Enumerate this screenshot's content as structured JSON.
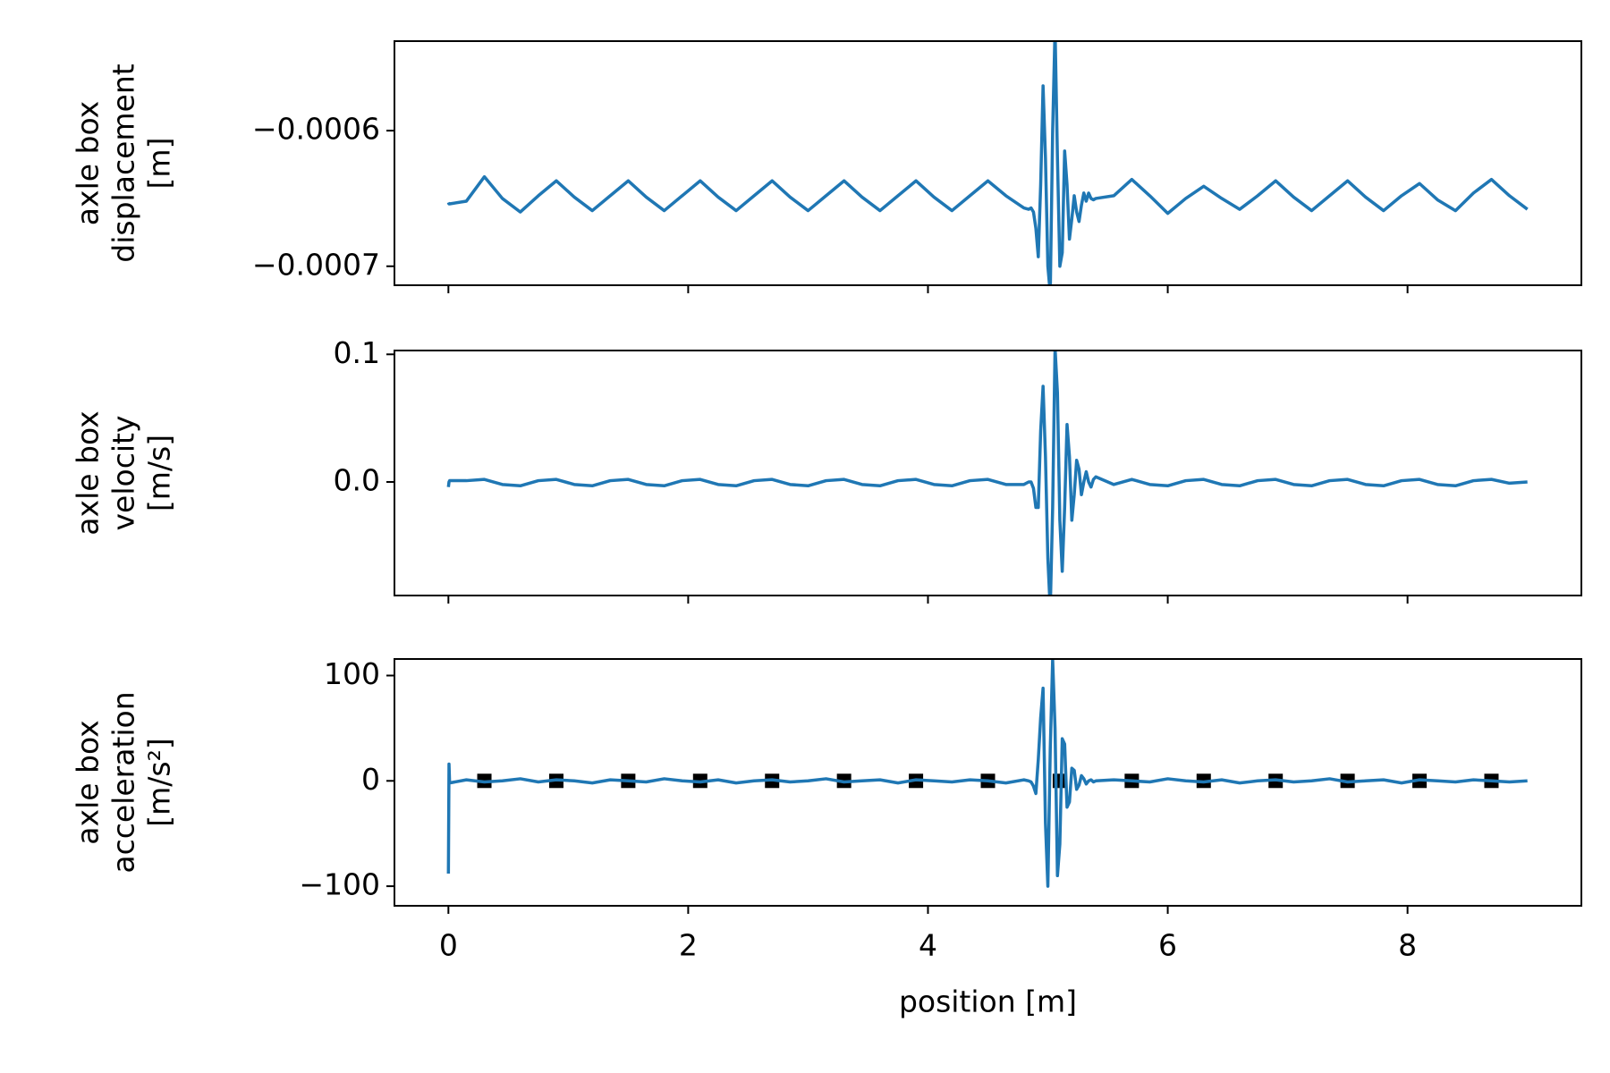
{
  "chart_data": [
    {
      "type": "line",
      "ylabel": [
        "axle box",
        "displacement",
        "[m]"
      ],
      "x": [
        0,
        0.005,
        0.01,
        0.15,
        0.3,
        0.45,
        0.6,
        0.75,
        0.9,
        1.05,
        1.2,
        1.35,
        1.5,
        1.65,
        1.8,
        1.95,
        2.1,
        2.25,
        2.4,
        2.55,
        2.7,
        2.85,
        3.0,
        3.15,
        3.3,
        3.45,
        3.6,
        3.75,
        3.9,
        4.05,
        4.2,
        4.35,
        4.5,
        4.65,
        4.8,
        4.84,
        4.86,
        4.88,
        4.9,
        4.92,
        4.94,
        4.96,
        4.98,
        5.0,
        5.02,
        5.04,
        5.06,
        5.08,
        5.1,
        5.12,
        5.14,
        5.16,
        5.18,
        5.2,
        5.22,
        5.24,
        5.26,
        5.28,
        5.3,
        5.32,
        5.34,
        5.36,
        5.38,
        5.4,
        5.55,
        5.7,
        5.85,
        6.0,
        6.15,
        6.3,
        6.45,
        6.6,
        6.75,
        6.9,
        7.05,
        7.2,
        7.35,
        7.5,
        7.65,
        7.8,
        7.95,
        8.1,
        8.25,
        8.4,
        8.55,
        8.7,
        8.85,
        9.0
      ],
      "series": [
        {
          "color": "#1f77b4",
          "values": [
            -0.000653,
            -0.000654,
            -0.000654,
            -0.000652,
            -0.000634,
            -0.00065,
            -0.00066,
            -0.000648,
            -0.000637,
            -0.000649,
            -0.000659,
            -0.000648,
            -0.000637,
            -0.000649,
            -0.000659,
            -0.000648,
            -0.000637,
            -0.000649,
            -0.000659,
            -0.000648,
            -0.000637,
            -0.000649,
            -0.000659,
            -0.000648,
            -0.000637,
            -0.000649,
            -0.000659,
            -0.000648,
            -0.000637,
            -0.000649,
            -0.000659,
            -0.000648,
            -0.000637,
            -0.000648,
            -0.000657,
            -0.000658,
            -0.000657,
            -0.00066,
            -0.000672,
            -0.000693,
            -0.00064,
            -0.000567,
            -0.00062,
            -0.0007,
            -0.00072,
            -0.0006,
            -0.000525,
            -0.00062,
            -0.0007,
            -0.00069,
            -0.000615,
            -0.00064,
            -0.00068,
            -0.000665,
            -0.000648,
            -0.00066,
            -0.000667,
            -0.000655,
            -0.000646,
            -0.000652,
            -0.000646,
            -0.00065,
            -0.000651,
            -0.00065,
            -0.000648,
            -0.000636,
            -0.000648,
            -0.000661,
            -0.00065,
            -0.000641,
            -0.00065,
            -0.000658,
            -0.000648,
            -0.000637,
            -0.000649,
            -0.000659,
            -0.000648,
            -0.000637,
            -0.000649,
            -0.000659,
            -0.000648,
            -0.000639,
            -0.000651,
            -0.000659,
            -0.000646,
            -0.000636,
            -0.000648,
            -0.000658
          ]
        }
      ],
      "xlim": [
        -0.45,
        9.45
      ],
      "xticks": [
        0,
        2,
        4,
        6,
        8
      ],
      "ylim": [
        -0.000714,
        -0.000534
      ],
      "yticks": [
        {
          "value": -0.0006,
          "label": "−0.0006"
        },
        {
          "value": -0.0007,
          "label": "−0.0007"
        }
      ]
    },
    {
      "type": "line",
      "ylabel": [
        "axle box",
        "velocity",
        "[m/s]"
      ],
      "x": [
        0,
        0.005,
        0.01,
        0.15,
        0.3,
        0.45,
        0.6,
        0.75,
        0.9,
        1.05,
        1.2,
        1.35,
        1.5,
        1.65,
        1.8,
        1.95,
        2.1,
        2.25,
        2.4,
        2.55,
        2.7,
        2.85,
        3.0,
        3.15,
        3.3,
        3.45,
        3.6,
        3.75,
        3.9,
        4.05,
        4.2,
        4.35,
        4.5,
        4.65,
        4.8,
        4.84,
        4.86,
        4.88,
        4.9,
        4.92,
        4.94,
        4.96,
        4.98,
        5.0,
        5.02,
        5.04,
        5.06,
        5.08,
        5.1,
        5.12,
        5.14,
        5.16,
        5.18,
        5.2,
        5.22,
        5.24,
        5.26,
        5.28,
        5.3,
        5.32,
        5.34,
        5.36,
        5.38,
        5.4,
        5.55,
        5.7,
        5.85,
        6.0,
        6.15,
        6.3,
        6.45,
        6.6,
        6.75,
        6.9,
        7.05,
        7.2,
        7.35,
        7.5,
        7.65,
        7.8,
        7.95,
        8.1,
        8.25,
        8.4,
        8.55,
        8.7,
        8.85,
        9.0
      ],
      "series": [
        {
          "color": "#1f77b4",
          "values": [
            -0.004,
            0,
            0.001,
            0.001,
            0.002,
            -0.002,
            -0.003,
            0.001,
            0.002,
            -0.002,
            -0.003,
            0.001,
            0.002,
            -0.002,
            -0.003,
            0.001,
            0.002,
            -0.002,
            -0.003,
            0.001,
            0.002,
            -0.002,
            -0.003,
            0.001,
            0.002,
            -0.002,
            -0.003,
            0.001,
            0.002,
            -0.002,
            -0.003,
            0.001,
            0.002,
            -0.002,
            -0.002,
            0,
            0,
            -0.005,
            -0.02,
            -0.02,
            0.04,
            0.075,
            0.02,
            -0.06,
            -0.1,
            -0.02,
            0.105,
            0.07,
            -0.03,
            -0.07,
            -0.02,
            0.045,
            0.02,
            -0.03,
            -0.01,
            0.017,
            0.01,
            -0.01,
            0,
            0.008,
            0,
            -0.004,
            0.002,
            0.004,
            -0.002,
            0.002,
            -0.002,
            -0.003,
            0.001,
            0.002,
            -0.002,
            -0.003,
            0.001,
            0.002,
            -0.002,
            -0.003,
            0.001,
            0.002,
            -0.002,
            -0.003,
            0.001,
            0.002,
            -0.002,
            -0.003,
            0.001,
            0.002,
            -0.001,
            0
          ]
        }
      ],
      "xlim": [
        -0.45,
        9.45
      ],
      "xticks": [
        0,
        2,
        4,
        6,
        8
      ],
      "ylim": [
        -0.089,
        0.103
      ],
      "yticks": [
        0.1,
        {
          "value": 0,
          "label": "0.0"
        }
      ]
    },
    {
      "type": "line",
      "ylabel": [
        "axle box",
        "acceleration",
        "[m/s²]"
      ],
      "xlabel": "position [m]",
      "x": [
        0,
        0.005,
        0.01,
        0.15,
        0.3,
        0.45,
        0.6,
        0.75,
        0.9,
        1.05,
        1.2,
        1.35,
        1.5,
        1.65,
        1.8,
        1.95,
        2.1,
        2.25,
        2.4,
        2.55,
        2.7,
        2.85,
        3.0,
        3.15,
        3.3,
        3.45,
        3.6,
        3.75,
        3.9,
        4.05,
        4.2,
        4.35,
        4.5,
        4.65,
        4.8,
        4.84,
        4.86,
        4.88,
        4.9,
        4.92,
        4.94,
        4.96,
        4.98,
        5.0,
        5.02,
        5.04,
        5.06,
        5.08,
        5.1,
        5.12,
        5.14,
        5.16,
        5.18,
        5.2,
        5.22,
        5.24,
        5.26,
        5.28,
        5.3,
        5.32,
        5.34,
        5.36,
        5.38,
        5.4,
        5.55,
        5.7,
        5.85,
        6.0,
        6.15,
        6.3,
        6.45,
        6.6,
        6.75,
        6.9,
        7.05,
        7.2,
        7.35,
        7.5,
        7.65,
        7.8,
        7.95,
        8.1,
        8.25,
        8.4,
        8.55,
        8.7,
        8.85,
        9.0
      ],
      "series": [
        {
          "color": "#000000",
          "marker": "square",
          "x": [
            0.3,
            0.9,
            1.5,
            2.1,
            2.7,
            3.3,
            3.9,
            4.5,
            5.1,
            5.7,
            6.3,
            6.9,
            7.5,
            8.1,
            8.7
          ],
          "values": [
            0,
            0,
            0,
            0,
            0,
            0,
            0,
            0,
            0,
            0,
            0,
            0,
            0,
            0,
            0
          ]
        },
        {
          "color": "#1f77b4",
          "values": [
            -88,
            16,
            -2,
            1,
            -1,
            0,
            2,
            -1,
            1,
            0,
            -2,
            1,
            0,
            -1,
            2,
            0,
            -1,
            1,
            -2,
            0,
            1,
            -1,
            0,
            2,
            -1,
            0,
            1,
            -2,
            1,
            0,
            -1,
            1,
            0,
            -2,
            1,
            0,
            -1,
            -5,
            -12,
            20,
            60,
            88,
            -40,
            -100,
            30,
            115,
            50,
            -90,
            -60,
            40,
            35,
            -25,
            -20,
            12,
            10,
            -8,
            -4,
            5,
            2,
            -3,
            0,
            1,
            -1,
            0,
            1,
            0,
            -1,
            2,
            0,
            -1,
            1,
            -2,
            0,
            1,
            -1,
            0,
            2,
            -1,
            0,
            1,
            -2,
            1,
            0,
            -1,
            1,
            0,
            -1,
            0
          ]
        }
      ],
      "xlim": [
        -0.45,
        9.45
      ],
      "xticks": [
        0,
        2,
        4,
        6,
        8
      ],
      "ylim": [
        -118.6,
        115.7
      ],
      "yticks": [
        100,
        0,
        {
          "value": -100,
          "label": "−100"
        }
      ]
    }
  ]
}
